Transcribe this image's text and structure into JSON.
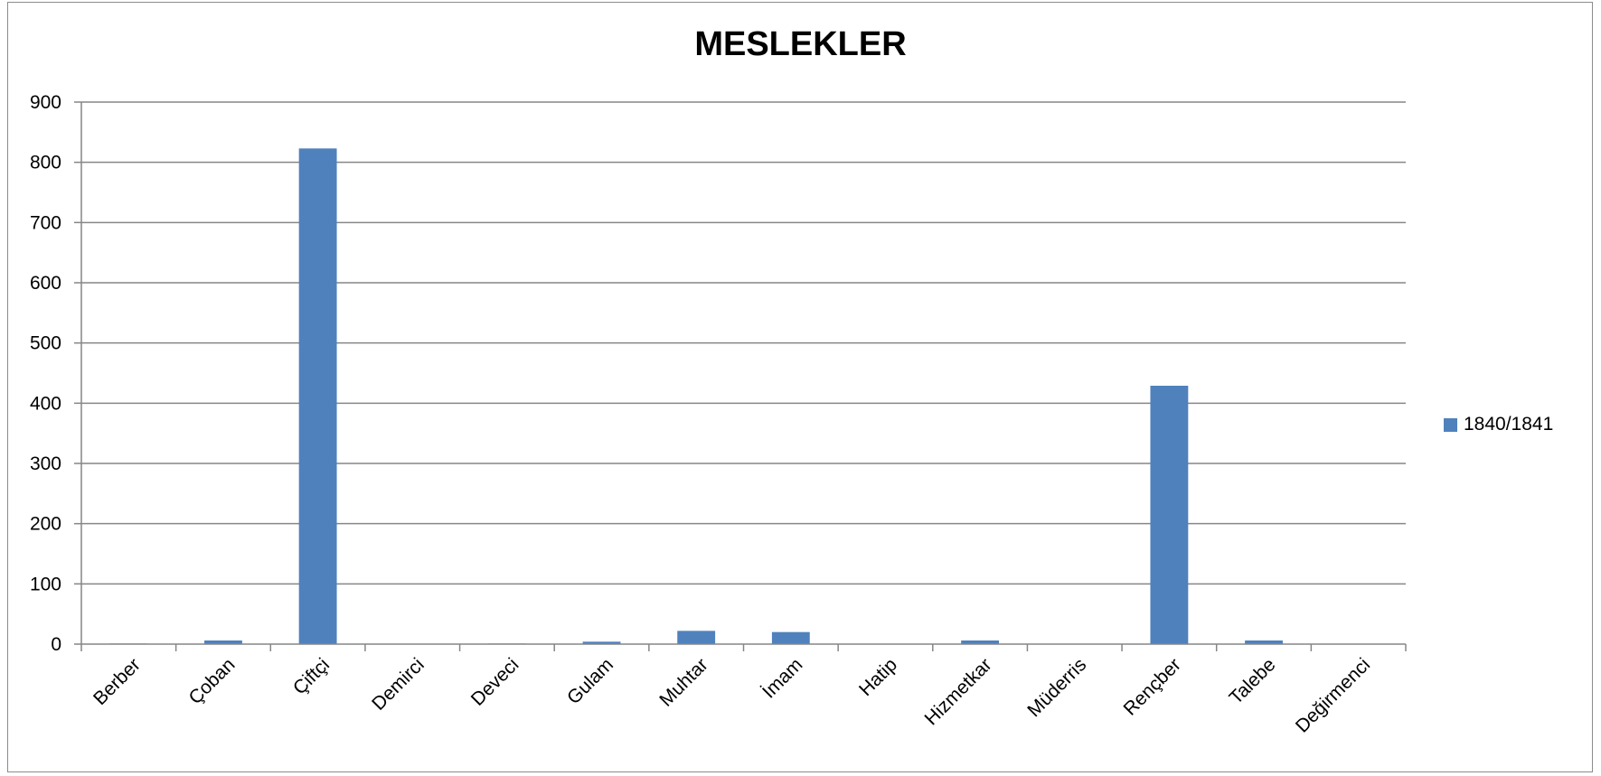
{
  "chart_data": {
    "type": "bar",
    "title": "MESLEKLER",
    "xlabel": "",
    "ylabel": "",
    "ylim": [
      0,
      900
    ],
    "yticks": [
      0,
      100,
      200,
      300,
      400,
      500,
      600,
      700,
      800,
      900
    ],
    "grid": true,
    "legend_position": "right",
    "categories": [
      "Berber",
      "Çoban",
      "Çiftçi",
      "Demirci",
      "Deveci",
      "Gulam",
      "Muhtar",
      "İmam",
      "Hatip",
      "Hizmetkar",
      "Müderris",
      "Rençber",
      "Talebe",
      "Değirmenci"
    ],
    "series": [
      {
        "name": "1840/1841",
        "color": "#4f81bd",
        "values": [
          1,
          6,
          823,
          0,
          1,
          4,
          22,
          20,
          0,
          6,
          0,
          429,
          6,
          0
        ]
      }
    ]
  }
}
